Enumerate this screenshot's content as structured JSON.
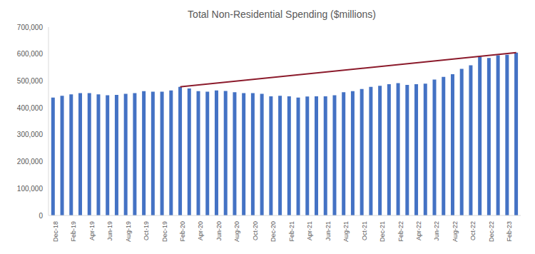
{
  "chart_data": {
    "type": "bar",
    "title": "Total Non-Residential Spending ($millions)",
    "categories": [
      "Dec-18",
      null,
      "Feb-19",
      null,
      "Apr-19",
      null,
      "Jun-19",
      null,
      "Aug-19",
      null,
      "Oct-19",
      null,
      "Dec-19",
      null,
      "Feb-20",
      null,
      "Apr-20",
      null,
      "Jun-20",
      null,
      "Aug-20",
      null,
      "Oct-20",
      null,
      "Dec-20",
      null,
      "Feb-21",
      null,
      "Apr-21",
      null,
      "Jun-21",
      null,
      "Aug-21",
      null,
      "Oct-21",
      null,
      "Dec-21",
      null,
      "Feb-22",
      null,
      "Apr-22",
      null,
      "Jun-22",
      null,
      "Aug-22",
      null,
      "Oct-22",
      null,
      "Dec-22",
      null,
      "Feb-23",
      null
    ],
    "series": [
      {
        "type": "bar",
        "color": "#4472c4",
        "values": [
          438000,
          445000,
          450000,
          455000,
          455000,
          450000,
          447000,
          448000,
          452000,
          455000,
          462000,
          460000,
          460000,
          465000,
          478000,
          472000,
          462000,
          460000,
          465000,
          463000,
          458000,
          455000,
          455000,
          452000,
          443000,
          445000,
          443000,
          438000,
          442000,
          443000,
          443000,
          447000,
          458000,
          462000,
          470000,
          478000,
          482000,
          488000,
          492000,
          485000,
          488000,
          490000,
          505000,
          515000,
          525000,
          545000,
          558000,
          590000,
          585000,
          595000,
          597000,
          605000
        ]
      },
      {
        "type": "line",
        "color": "#8b1a2b",
        "line_style": "solid",
        "values": [
          null,
          null,
          null,
          null,
          null,
          null,
          null,
          null,
          null,
          null,
          null,
          null,
          null,
          null,
          478000,
          null,
          null,
          null,
          null,
          null,
          null,
          null,
          null,
          null,
          null,
          null,
          null,
          null,
          null,
          null,
          null,
          null,
          null,
          null,
          null,
          null,
          null,
          null,
          null,
          null,
          null,
          null,
          null,
          null,
          null,
          null,
          null,
          null,
          null,
          null,
          null,
          605000
        ]
      }
    ],
    "ylim": [
      0,
      700000
    ],
    "yticks": [
      0,
      {
        "value": 100000,
        "label": "100,000"
      },
      {
        "value": 200000,
        "label": "200,000"
      },
      {
        "value": 300000,
        "label": "300,000"
      },
      {
        "value": 400000,
        "label": "400,000"
      },
      {
        "value": 500000,
        "label": "500,000"
      },
      {
        "value": 600000,
        "label": "600,000"
      },
      {
        "value": 700000,
        "label": "700,000"
      }
    ],
    "grid": false
  }
}
